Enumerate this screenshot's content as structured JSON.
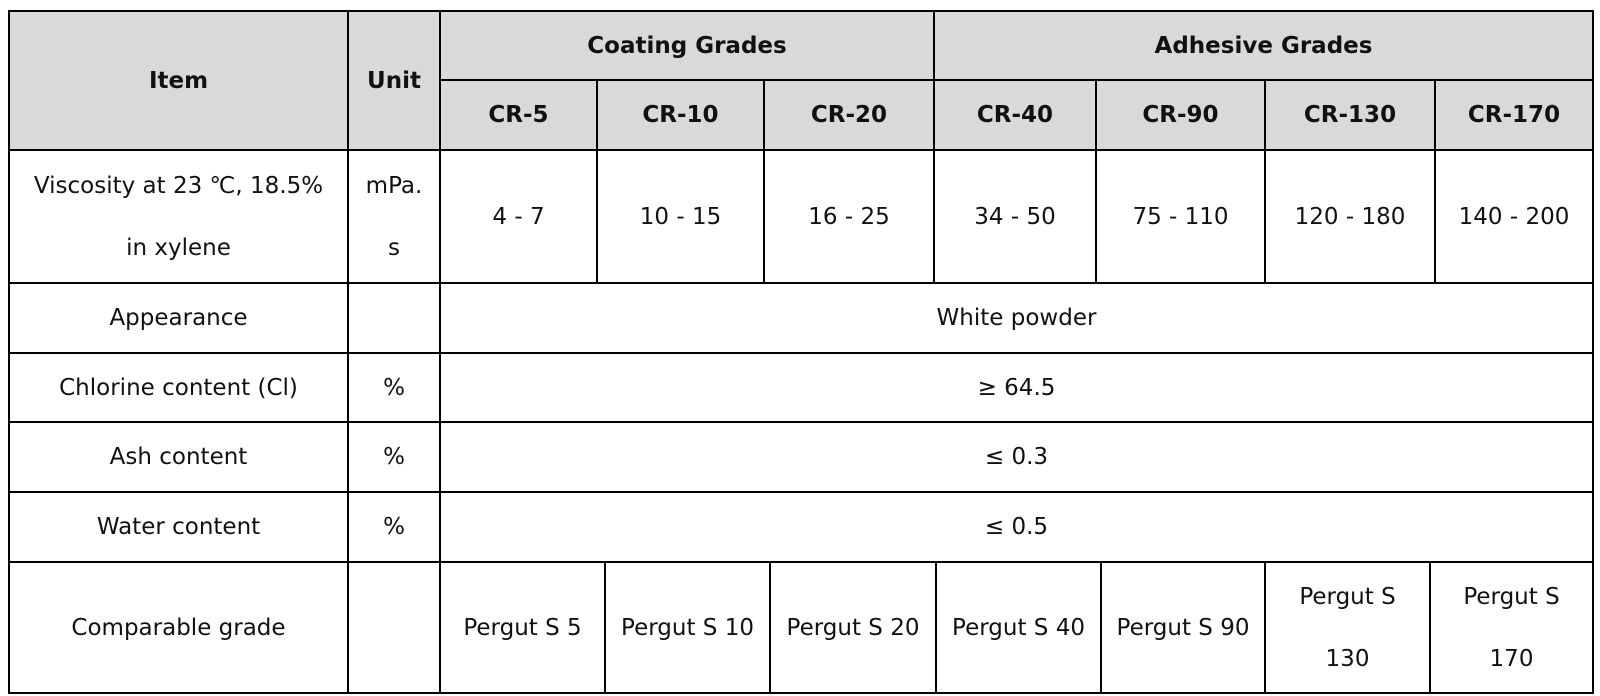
{
  "header": {
    "item": "Item",
    "unit": "Unit",
    "groups": [
      "Coating Grades",
      "Adhesive Grades"
    ],
    "grades": [
      "CR-5",
      "CR-10",
      "CR-20",
      "CR-40",
      "CR-90",
      "CR-130",
      "CR-170"
    ]
  },
  "rows": [
    {
      "item": "Viscosity at 23 ℃, 18.5% in xylene",
      "unit": "mPa. s",
      "values": [
        "4 - 7",
        "10 - 15",
        "16 - 25",
        "34 - 50",
        "75 - 110",
        "120 - 180",
        "140 - 200"
      ]
    },
    {
      "item": "Appearance",
      "value": "White powder"
    },
    {
      "item": "Chlorine content (Cl)",
      "unit": "%",
      "value": "≥ 64.5"
    },
    {
      "item": "Ash content",
      "unit": "%",
      "value": "≤ 0.3"
    },
    {
      "item": "Water content",
      "unit": "%",
      "value": "≤ 0.5"
    },
    {
      "item": "Comparable grade",
      "values": [
        "Pergut S 5",
        "Pergut S 10",
        "Pergut S 20",
        "Pergut S 40",
        "Pergut S 90",
        "Pergut S 130",
        "Pergut S 170"
      ]
    }
  ]
}
